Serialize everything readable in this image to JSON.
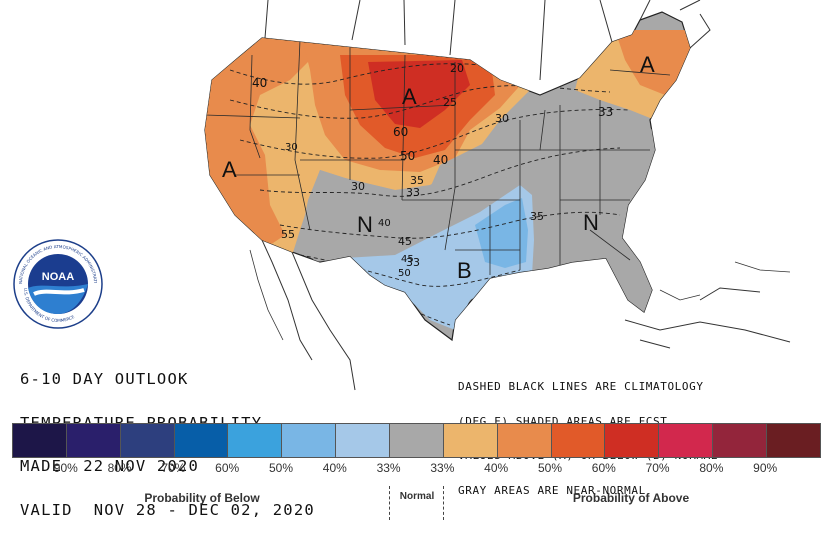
{
  "product": {
    "title_lines": [
      "6-10 DAY OUTLOOK",
      "TEMPERATURE PROBABILITY",
      "MADE  22 NOV 2020",
      "VALID  NOV 28 - DEC 02, 2020"
    ]
  },
  "notes": {
    "lines": [
      "DASHED BLACK LINES ARE CLIMATOLOGY",
      "(DEG F) SHADED AREAS ARE FCST",
      "VALUES ABOVE (A) OR BELOW (B) NORMAL",
      "GRAY AREAS ARE NEAR-NORMAL"
    ]
  },
  "logo": {
    "center_text": "NOAA",
    "ring_top": "NATIONAL OCEANIC AND ATMOSPHERIC ADMINISTRATION",
    "ring_bottom": "U.S. DEPARTMENT OF COMMERCE"
  },
  "map": {
    "region_labels": [
      "A",
      "A",
      "A",
      "N",
      "N",
      "B"
    ],
    "contour_labels": [
      "20",
      "25",
      "30",
      "33",
      "35",
      "40",
      "40",
      "45",
      "50",
      "55",
      "60",
      "30",
      "30",
      "33",
      "35",
      "45",
      "50",
      "40",
      "33"
    ]
  },
  "legend": {
    "colors": [
      "#1d1648",
      "#2a1f6b",
      "#2d3f7e",
      "#075ea8",
      "#3ba2dd",
      "#79b6e5",
      "#a5c8e8",
      "#a8a8a8",
      "#ecb56c",
      "#e88b4c",
      "#e15a29",
      "#cf2e23",
      "#d2284d",
      "#93253b",
      "#6a1e22"
    ],
    "ticks": [
      "90%",
      "80%",
      "70%",
      "60%",
      "50%",
      "40%",
      "33%",
      "33%",
      "40%",
      "50%",
      "60%",
      "70%",
      "80%",
      "90%"
    ],
    "below_label": "Probability of Below",
    "normal_label": "Normal",
    "above_label": "Probability of Above"
  }
}
